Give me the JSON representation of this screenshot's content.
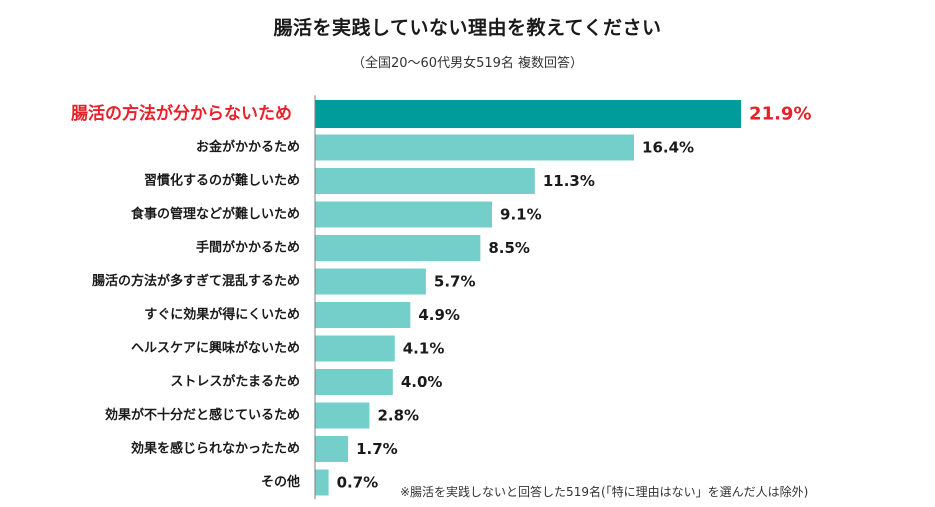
{
  "chart_data": {
    "type": "bar",
    "orientation": "horizontal",
    "title": "腸活を実践していない理由を教えてください",
    "subtitle": "（全国20～60代男女519名 複数回答）",
    "categories": [
      "腸活の方法が分からないため",
      "お金がかかるため",
      "習慣化するのが難しいため",
      "食事の管理などが難しいため",
      "手間がかかるため",
      "腸活の方法が多すぎて混乱するため",
      "すぐに効果が得にくいため",
      "ヘルスケアに興味がないため",
      "ストレスがたまるため",
      "効果が不十分だと感じているため",
      "効果を感じられなかったため",
      "その他"
    ],
    "values": [
      21.9,
      16.4,
      11.3,
      9.1,
      8.5,
      5.7,
      4.9,
      4.1,
      4.0,
      2.8,
      1.7,
      0.7
    ],
    "value_labels": [
      "21.9%",
      "16.4%",
      "11.3%",
      "9.1%",
      "8.5%",
      "5.7%",
      "4.9%",
      "4.1%",
      "4.0%",
      "2.8%",
      "1.7%",
      "0.7%"
    ],
    "highlight_index": 0,
    "unit": "%",
    "xlim": [
      0,
      22
    ],
    "grid": false,
    "colors": {
      "highlight_bar": "#009b9b",
      "bar": "#74cfcb",
      "highlight_text": "#e8202a",
      "axis": "#7f7f7f"
    },
    "footnote": "※腸活を実践しないと回答した519名(「特に理由はない」を選んだ人は除外)"
  }
}
